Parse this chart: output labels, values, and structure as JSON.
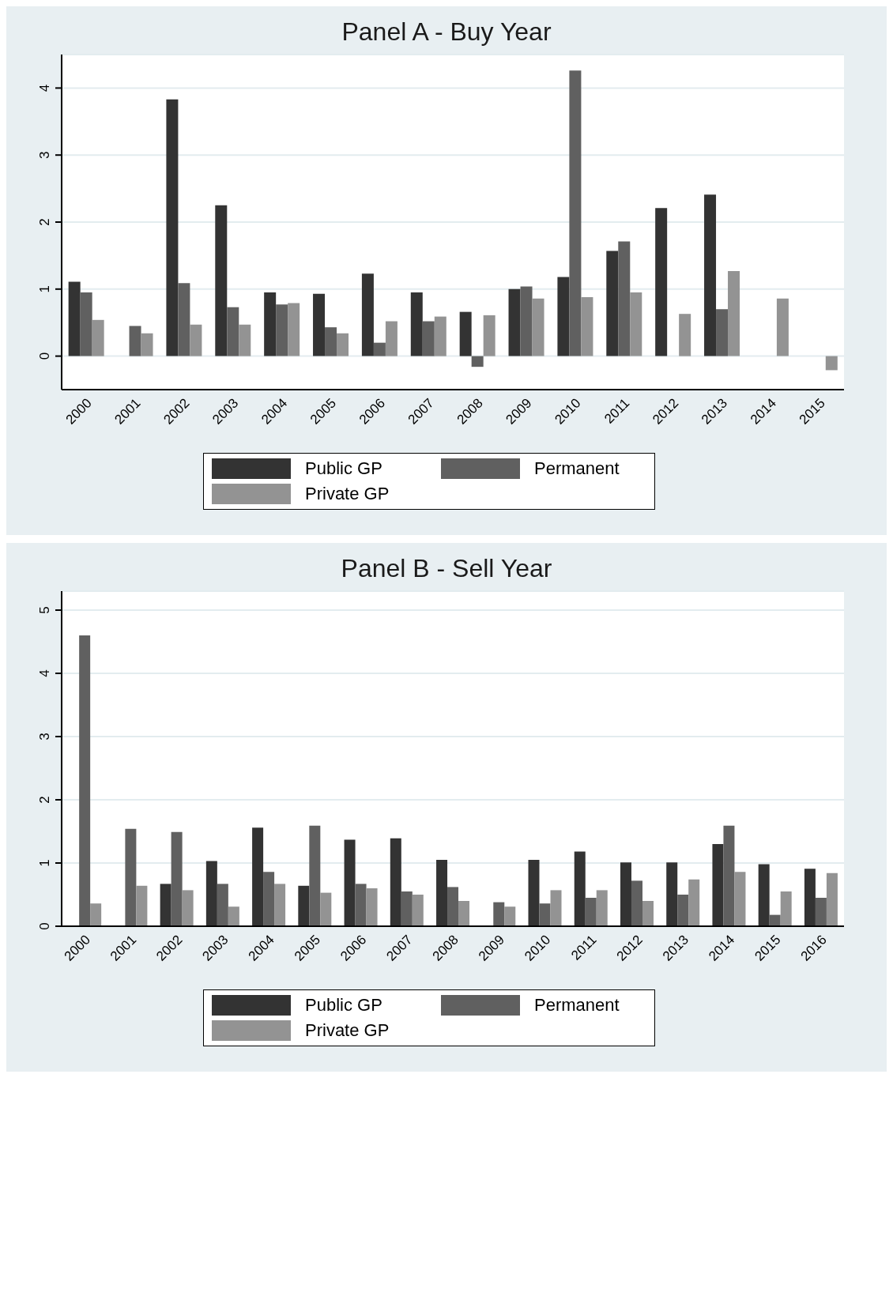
{
  "chart_data": [
    {
      "type": "bar",
      "title": "Panel A - Buy Year",
      "categories": [
        "2000",
        "2001",
        "2002",
        "2003",
        "2004",
        "2005",
        "2006",
        "2007",
        "2008",
        "2009",
        "2010",
        "2011",
        "2012",
        "2013",
        "2014",
        "2015"
      ],
      "series": [
        {
          "name": "Public GP",
          "color": "#333333",
          "values": [
            1.11,
            null,
            3.83,
            2.25,
            0.95,
            0.93,
            1.23,
            0.95,
            0.66,
            1.0,
            1.18,
            1.57,
            2.21,
            2.41,
            null,
            null
          ]
        },
        {
          "name": "Permanent",
          "color": "#606060",
          "values": [
            0.95,
            0.45,
            1.09,
            0.73,
            0.77,
            0.43,
            0.2,
            0.52,
            -0.16,
            1.04,
            4.26,
            1.71,
            null,
            0.7,
            null,
            null
          ]
        },
        {
          "name": "Private GP",
          "color": "#939393",
          "values": [
            0.54,
            0.34,
            0.47,
            0.47,
            0.79,
            0.34,
            0.52,
            0.59,
            0.61,
            0.86,
            0.88,
            0.95,
            0.63,
            1.27,
            0.86,
            -0.21
          ]
        }
      ],
      "ylim": [
        -0.5,
        4.5
      ],
      "yticks": [
        0,
        1,
        2,
        3,
        4
      ],
      "grid": "y",
      "legend": "bottom"
    },
    {
      "type": "bar",
      "title": "Panel B - Sell Year",
      "categories": [
        "2000",
        "2001",
        "2002",
        "2003",
        "2004",
        "2005",
        "2006",
        "2007",
        "2008",
        "2009",
        "2010",
        "2011",
        "2012",
        "2013",
        "2014",
        "2015",
        "2016"
      ],
      "series": [
        {
          "name": "Public GP",
          "color": "#333333",
          "values": [
            null,
            null,
            0.67,
            1.03,
            1.56,
            0.64,
            1.37,
            1.39,
            1.05,
            null,
            1.05,
            1.18,
            1.01,
            1.01,
            1.3,
            0.98,
            0.91
          ]
        },
        {
          "name": "Permanent",
          "color": "#606060",
          "values": [
            4.6,
            1.54,
            1.49,
            0.67,
            0.86,
            1.59,
            0.67,
            0.55,
            0.62,
            0.38,
            0.36,
            0.45,
            0.72,
            0.5,
            1.59,
            0.18,
            0.45
          ]
        },
        {
          "name": "Private GP",
          "color": "#939393",
          "values": [
            0.36,
            0.64,
            0.57,
            0.31,
            0.67,
            0.53,
            0.6,
            0.5,
            0.4,
            0.31,
            0.57,
            0.57,
            0.4,
            0.74,
            0.86,
            0.55,
            0.84
          ]
        }
      ],
      "ylim": [
        0,
        5.3
      ],
      "yticks": [
        0,
        1,
        2,
        3,
        4,
        5
      ],
      "grid": "y",
      "legend": "bottom"
    }
  ]
}
